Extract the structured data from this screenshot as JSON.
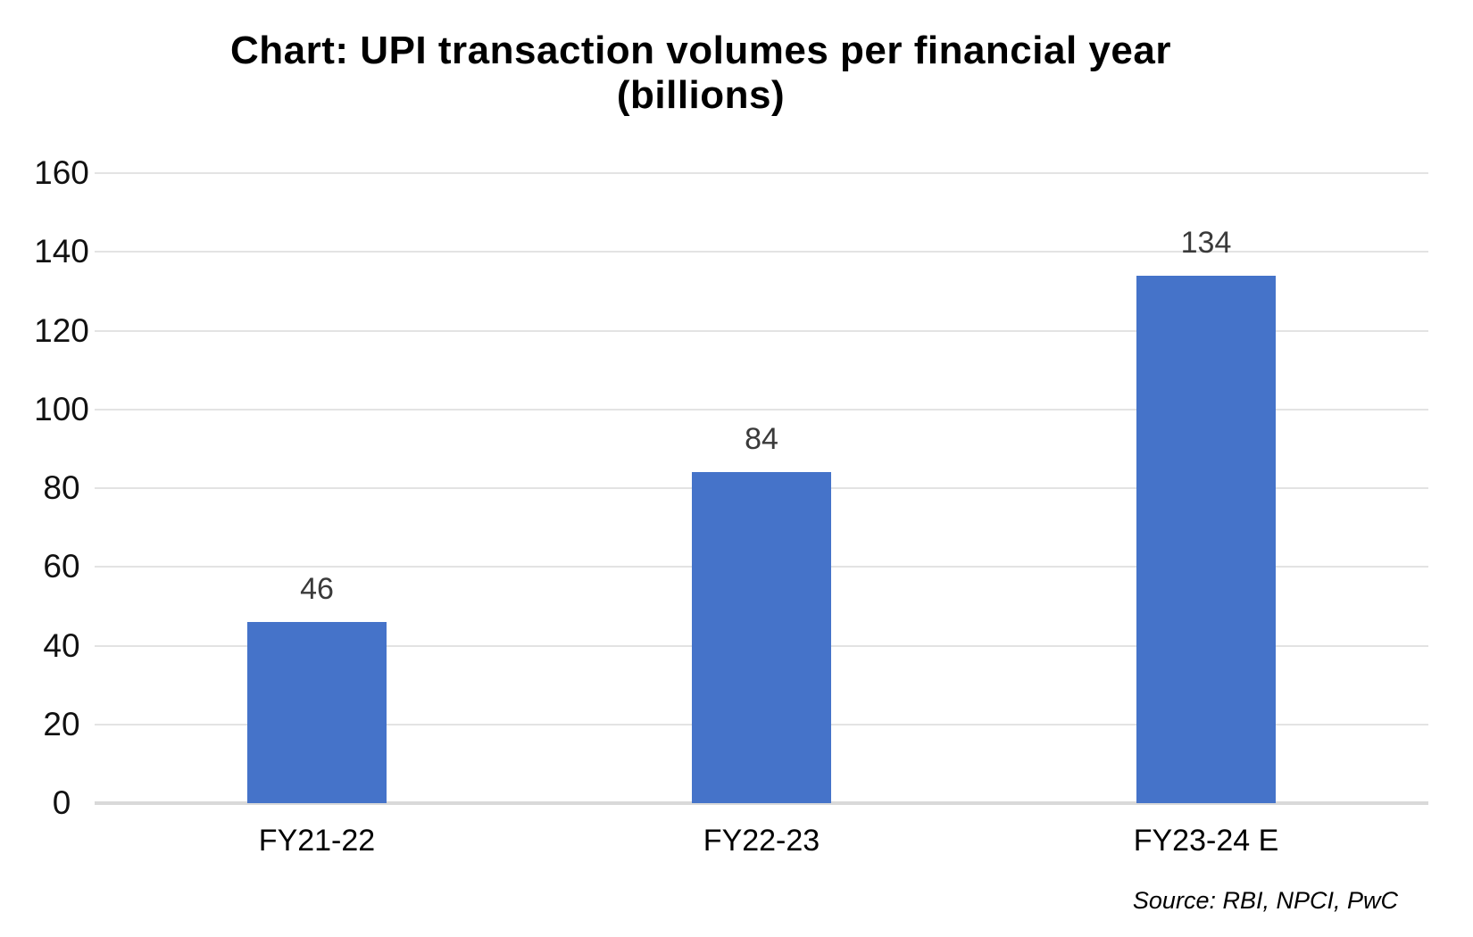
{
  "title": {
    "line1": "Chart: UPI transaction volumes per financial year",
    "line2": "(billions)"
  },
  "source": {
    "text": "Source: RBI, NPCI, PwC"
  },
  "colors": {
    "bar": "#4573c9",
    "gridline": "#e3e3e3",
    "axis_line": "#d9d9d9",
    "data_label": "#3a3a3a",
    "tick_label": "#111111",
    "title": "#000000"
  },
  "chart_data": {
    "type": "bar",
    "title": "Chart: UPI transaction volumes per financial year (billions)",
    "categories": [
      "FY21-22",
      "FY22-23",
      "FY23-24 E"
    ],
    "values": [
      46,
      84,
      134
    ],
    "data_labels": [
      "46",
      "84",
      "134"
    ],
    "xlabel": "",
    "ylabel": "",
    "ylim": [
      0,
      160
    ],
    "yticks": [
      0,
      20,
      40,
      60,
      80,
      100,
      120,
      140,
      160
    ],
    "grid": true,
    "legend": false,
    "annotations": [
      "Source: RBI, NPCI, PwC"
    ]
  }
}
